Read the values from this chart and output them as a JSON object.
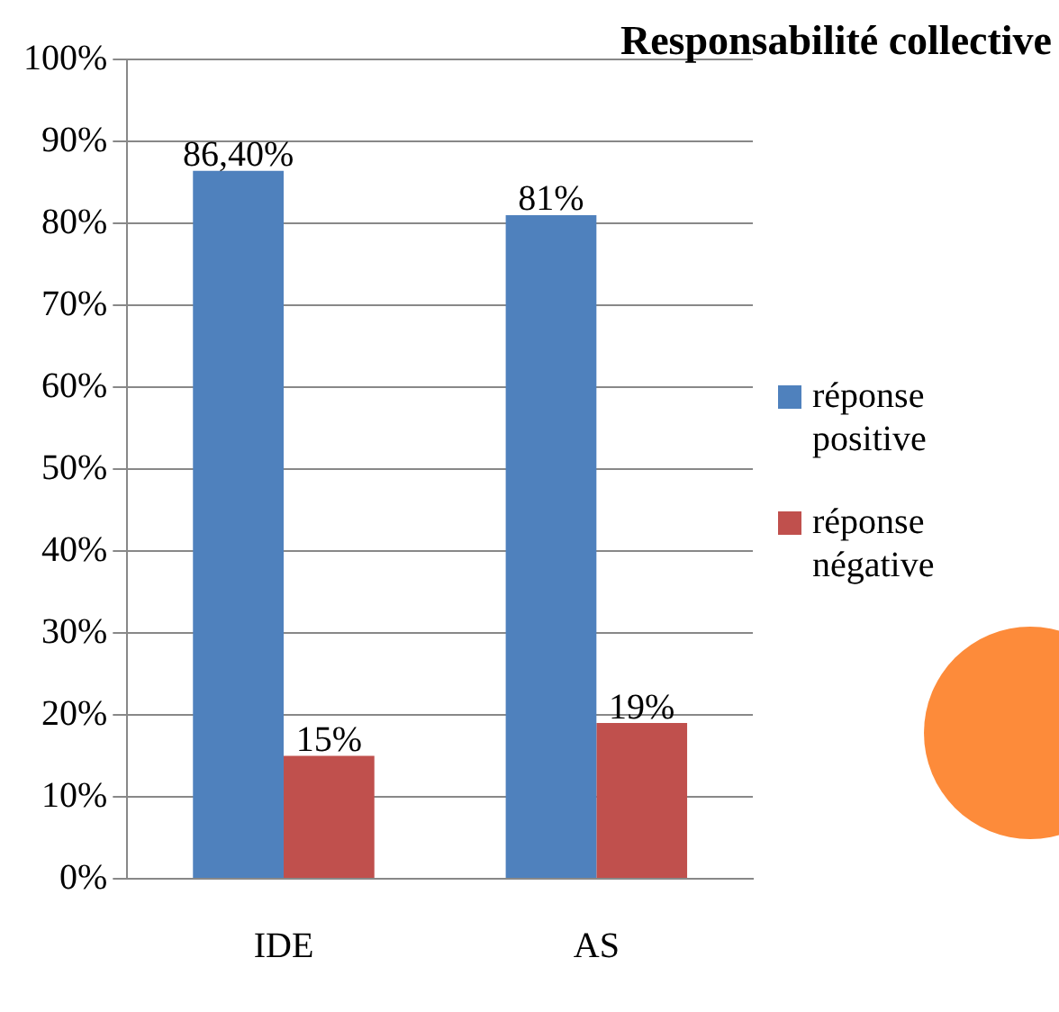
{
  "chart_data": {
    "type": "bar",
    "title": "Responsabilité collective",
    "categories": [
      "IDE",
      "AS"
    ],
    "series": [
      {
        "name": "réponse positive",
        "color": "#4f81bd",
        "values": [
          86.4,
          81
        ],
        "value_labels": [
          "86,40%",
          "81%"
        ]
      },
      {
        "name": "réponse négative",
        "color": "#c0504d",
        "values": [
          15,
          19
        ],
        "value_labels": [
          "15%",
          "19%"
        ]
      }
    ],
    "ylim": [
      0,
      100
    ],
    "yticks": [
      {
        "value": 0,
        "label": "0%"
      },
      {
        "value": 10,
        "label": "10%"
      },
      {
        "value": 20,
        "label": "20%"
      },
      {
        "value": 30,
        "label": "30%"
      },
      {
        "value": 40,
        "label": "40%"
      },
      {
        "value": 50,
        "label": "50%"
      },
      {
        "value": 60,
        "label": "60%"
      },
      {
        "value": 70,
        "label": "70%"
      },
      {
        "value": 80,
        "label": "80%"
      },
      {
        "value": 90,
        "label": "90%"
      },
      {
        "value": 100,
        "label": "100%"
      }
    ],
    "grid": "y",
    "legend": "right"
  }
}
